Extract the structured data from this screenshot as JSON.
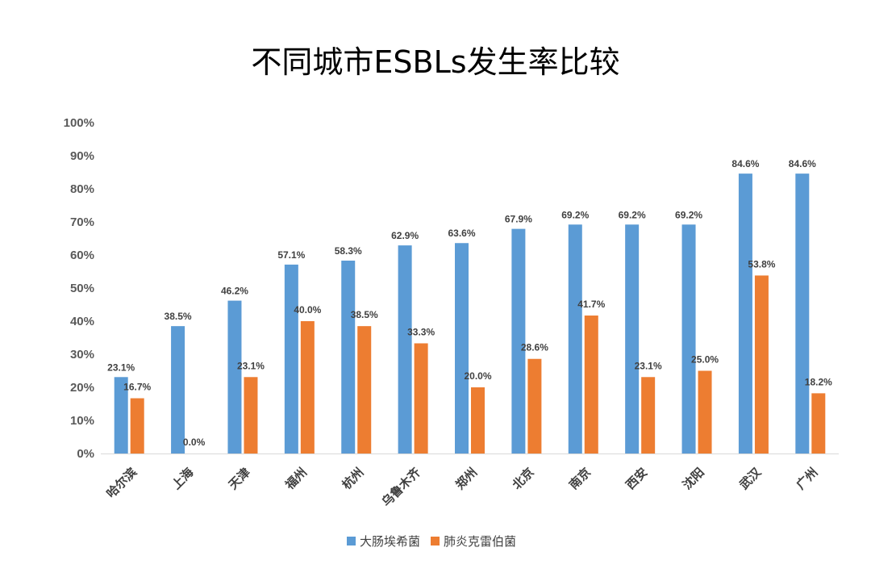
{
  "chart_data": {
    "type": "bar",
    "title": "不同城市ESBLs发生率比较",
    "categories": [
      "哈尔滨",
      "上海",
      "天津",
      "福州",
      "杭州",
      "乌鲁木齐",
      "郑州",
      "北京",
      "南京",
      "西安",
      "沈阳",
      "武汉",
      "广州"
    ],
    "series": [
      {
        "name": "大肠埃希菌",
        "color": "#5B9BD5",
        "values": [
          23.1,
          38.5,
          46.2,
          57.1,
          58.3,
          62.9,
          63.6,
          67.9,
          69.2,
          69.2,
          69.2,
          84.6,
          84.6
        ],
        "labels": [
          "23.1%",
          "38.5%",
          "46.2%",
          "57.1%",
          "58.3%",
          "62.9%",
          "63.6%",
          "67.9%",
          "69.2%",
          "69.2%",
          "69.2%",
          "84.6%",
          "84.6%"
        ]
      },
      {
        "name": "肺炎克雷伯菌",
        "color": "#ED7D31",
        "values": [
          16.7,
          0.0,
          23.1,
          40.0,
          38.5,
          33.3,
          20.0,
          28.6,
          41.7,
          23.1,
          25.0,
          53.8,
          18.2
        ],
        "labels": [
          "16.7%",
          "0.0%",
          "23.1%",
          "40.0%",
          "38.5%",
          "33.3%",
          "20.0%",
          "28.6%",
          "41.7%",
          "23.1%",
          "25.0%",
          "53.8%",
          "18.2%"
        ]
      }
    ],
    "yticks": [
      "0%",
      "10%",
      "20%",
      "30%",
      "40%",
      "50%",
      "60%",
      "70%",
      "80%",
      "90%",
      "100%"
    ],
    "ylim": [
      0,
      100
    ],
    "xlabel": "",
    "ylabel": "",
    "grid": false,
    "legend_position": "bottom"
  }
}
